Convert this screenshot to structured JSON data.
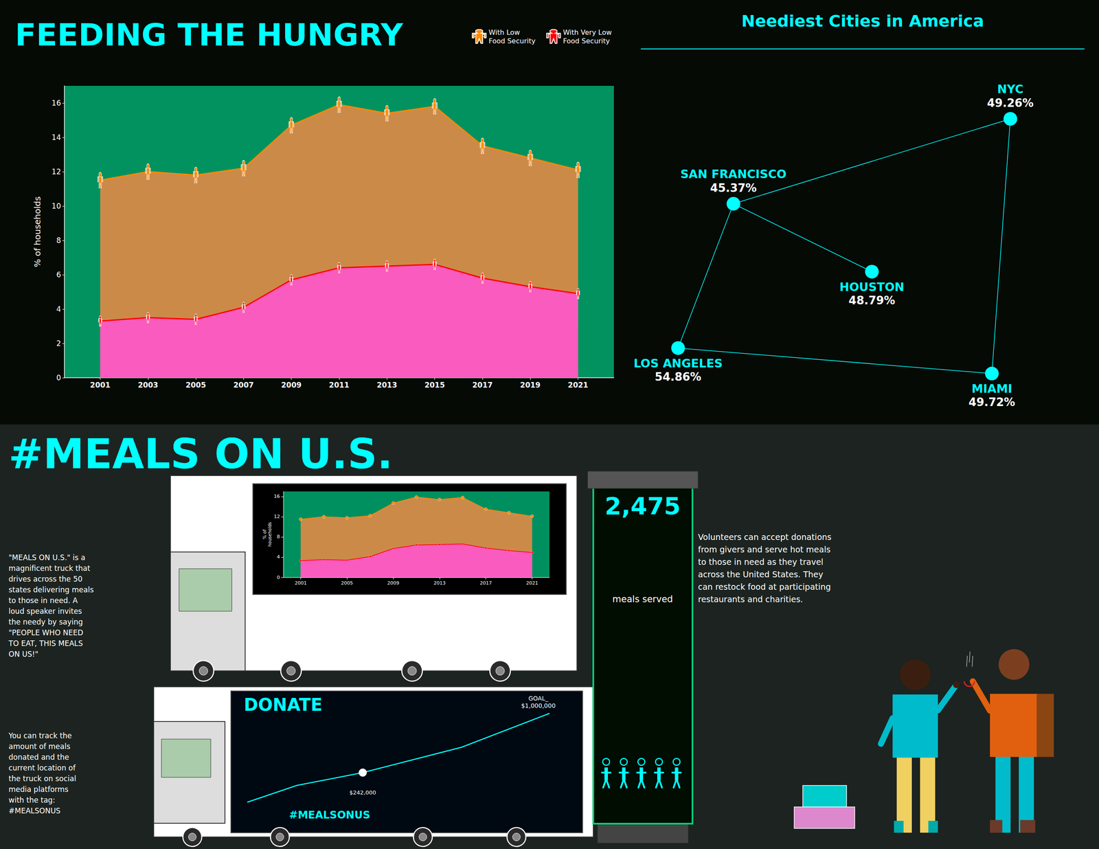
{
  "chart_data": [
    {
      "type": "line",
      "title": "FEEDING THE HUNGRY",
      "ylabel": "% of households",
      "x": [
        2001,
        2003,
        2005,
        2007,
        2009,
        2011,
        2013,
        2015,
        2017,
        2019,
        2021
      ],
      "series": [
        {
          "name": "With Low\nFood Security",
          "color": "#FF8800",
          "marker": "person",
          "values": [
            11.5,
            12.0,
            11.8,
            12.2,
            14.7,
            15.9,
            15.4,
            15.8,
            13.5,
            12.8,
            12.1
          ]
        },
        {
          "name": "With Very Low\nFood Security",
          "color": "#FF0000",
          "marker": "person",
          "values": [
            3.3,
            3.5,
            3.4,
            4.1,
            5.7,
            6.4,
            6.5,
            6.6,
            5.8,
            5.3,
            4.9
          ]
        }
      ],
      "xlim": [
        1999.5,
        2022.5
      ],
      "xticks": [
        2001,
        2003,
        2005,
        2007,
        2009,
        2011,
        2013,
        2015,
        2017,
        2019,
        2021
      ],
      "ylim": [
        0,
        17
      ],
      "yticks": [
        0,
        2,
        4,
        6,
        8,
        10,
        12,
        14,
        16
      ],
      "grid": false,
      "legend": "upper right",
      "annotations": [
        "Neediest Cities in America",
        "SAN FRANCISCO",
        "45.37%",
        "NYC",
        "49.26%",
        "HOUSTON",
        "48.79%",
        "LOS ANGELES",
        "54.86%",
        "MIAMI",
        "49.72%",
        "#MEALS ON U.S.",
        "\"MEALS ON U.S.\" is a\nmagnificent truck that\ndrives across the 50\nstates delivering meals\nto those in need. A\nloud speaker invites\nthe needy by saying\n\"PEOPLE WHO NEED\nTO EAT, THIS MEALS\nON US!\"",
        "You can track the\namount of meals\ndonated and the\ncurrent location of\nthe truck on social\nmedia platforms\nwith the tag:\n#MEALSONUS",
        "Volunteers can accept donations\nfrom givers and serve hot meals\nto those in need as they travel\nacross the United States. They\ncan restock food at participating\nrestaurants and charities.",
        "DONATE",
        "GOAL_\n$1,000,000",
        "$242,000",
        "#MEALSONUS",
        "2,475",
        "meals served"
      ]
    },
    {
      "type": "line",
      "ylabel": "% of\nhouseholds",
      "x": [
        2001,
        2003,
        2005,
        2007,
        2009,
        2011,
        2013,
        2015,
        2017,
        2019,
        2021
      ],
      "series": [
        {
          "name": "With Low\nFood Security",
          "color": "#FF8800",
          "marker": "circle",
          "values": [
            11.5,
            12.0,
            11.8,
            12.2,
            14.7,
            15.9,
            15.4,
            15.8,
            13.5,
            12.8,
            12.1
          ]
        },
        {
          "name": "With Very Low\nFood Security",
          "color": "#FF0000",
          "marker": "circle",
          "values": [
            3.3,
            3.5,
            3.4,
            4.1,
            5.7,
            6.4,
            6.5,
            6.6,
            5.8,
            5.3,
            4.9
          ]
        }
      ],
      "xlim": [
        1999.5,
        2022.5
      ],
      "xticks": [
        2001,
        2005,
        2009,
        2013,
        2017,
        2021
      ],
      "ylim": [
        0,
        17
      ],
      "yticks": [
        0,
        4,
        8,
        12,
        16
      ],
      "grid": false
    }
  ]
}
